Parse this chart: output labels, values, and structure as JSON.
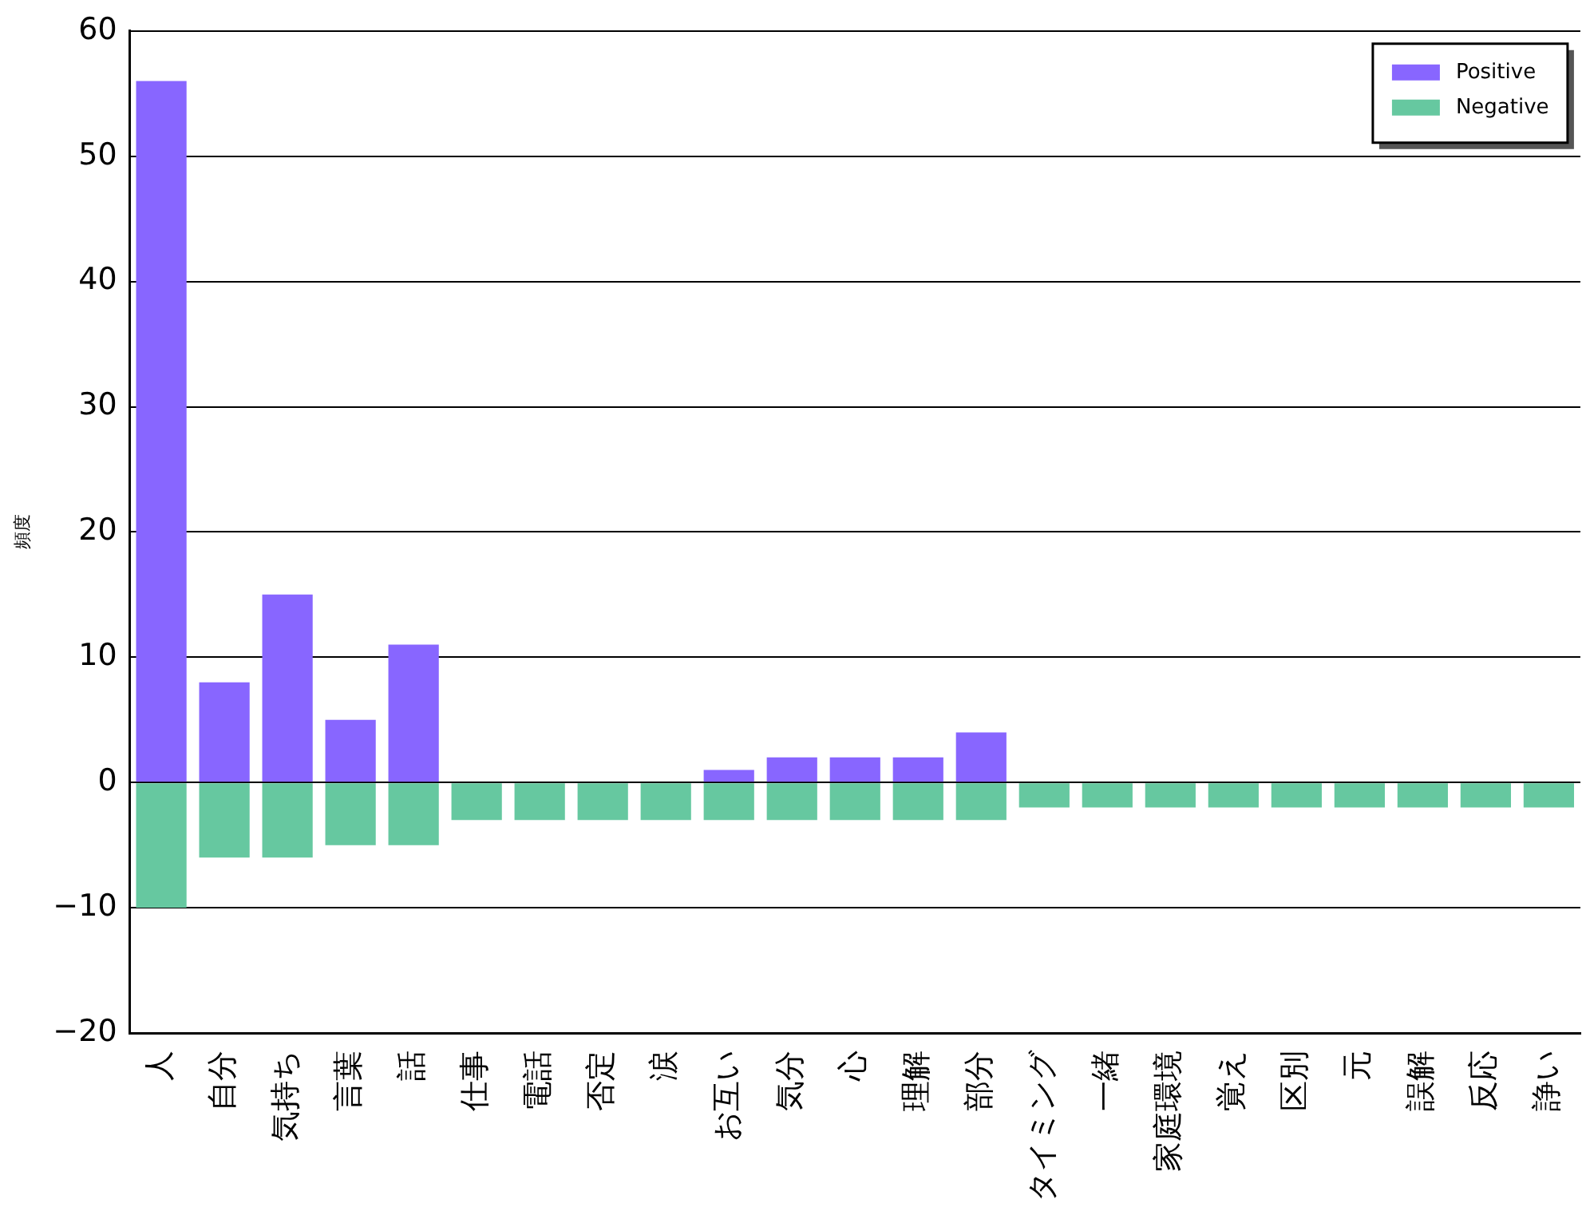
{
  "chart_data": {
    "type": "bar",
    "ylabel": "頻度",
    "categories": [
      "人",
      "自分",
      "気持ち",
      "言葉",
      "話",
      "仕事",
      "電話",
      "否定",
      "涙",
      "お互い",
      "気分",
      "心",
      "理解",
      "部分",
      "タイミング",
      "一緒",
      "家庭環境",
      "覚え",
      "区別",
      "元",
      "誤解",
      "反応",
      "諍い"
    ],
    "series": [
      {
        "name": "Positive",
        "color": "#8866ff",
        "values": [
          56,
          8,
          15,
          5,
          11,
          0,
          0,
          0,
          0,
          1,
          2,
          2,
          2,
          4,
          0,
          0,
          0,
          0,
          0,
          0,
          0,
          0,
          0
        ]
      },
      {
        "name": "Negative",
        "color": "#66c8a0",
        "values": [
          -10,
          -6,
          -6,
          -5,
          -5,
          -3,
          -3,
          -3,
          -3,
          -3,
          -3,
          -3,
          -3,
          -3,
          -2,
          -2,
          -2,
          -2,
          -2,
          -2,
          -2,
          -2,
          -2
        ]
      }
    ],
    "stacked": true,
    "ylim": [
      -20,
      60
    ],
    "yticks": [
      -20,
      -10,
      0,
      10,
      20,
      30,
      40,
      50,
      60
    ],
    "grid": "y",
    "legend": "top right"
  }
}
